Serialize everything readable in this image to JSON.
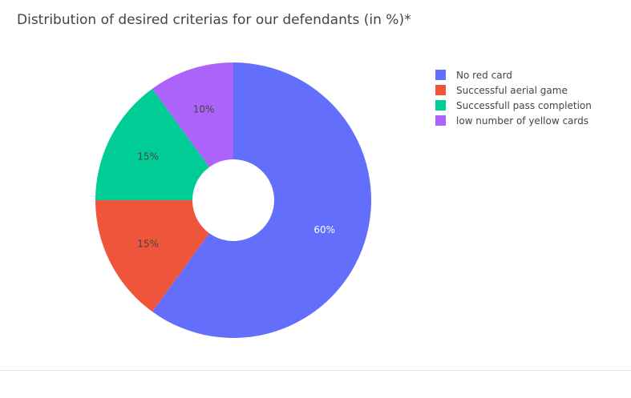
{
  "chart_data": {
    "type": "pie",
    "hole": true,
    "title": "Distribution of desired criterias for our defendants (in %)*",
    "categories": [
      "No red card",
      "Successful aerial game",
      "Successfull pass completion",
      "low number of yellow cards"
    ],
    "values": [
      60,
      15,
      15,
      10
    ],
    "labels": [
      "60%",
      "15%",
      "15%",
      "10%"
    ],
    "colors": [
      "#636efa",
      "#ef553b",
      "#00cc96",
      "#ab63fa"
    ],
    "label_colors": [
      "#ffffff",
      "#444444",
      "#444444",
      "#444444"
    ],
    "legend_position": "top-right"
  }
}
